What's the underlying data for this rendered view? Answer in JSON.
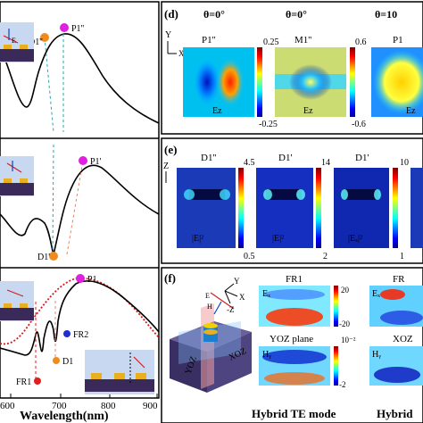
{
  "left_panel": {
    "x_axis_label": "Wavelength(nm)",
    "x_ticks": [
      "600",
      "700",
      "800",
      "900"
    ],
    "top": {
      "points": [
        {
          "label": "P1''",
          "color": "#e020e0"
        },
        {
          "label": "D1''",
          "color": "#f08c1e"
        }
      ]
    },
    "mid": {
      "points": [
        {
          "label": "P1'",
          "color": "#e020e0"
        },
        {
          "label": "D1'",
          "color": "#f08c1e"
        }
      ]
    },
    "bottom": {
      "points": [
        {
          "label": "P1",
          "color": "#e020e0"
        },
        {
          "label": "FR2",
          "color": "#1f2fd0"
        },
        {
          "label": "D1",
          "color": "#f08c1e"
        },
        {
          "label": "FR1",
          "color": "#e01f1f"
        }
      ]
    },
    "curve_color": "#000000",
    "dotted_color": "#d81a1a"
  },
  "panel_d": {
    "tag": "(d)",
    "columns": [
      {
        "theta": "θ=0°",
        "title": "P1''",
        "cb_max": "0.25",
        "cb_min": "-0.25",
        "field": "Ez"
      },
      {
        "theta": "θ=0°",
        "title": "M1''",
        "cb_max": "0.6",
        "cb_min": "-0.6",
        "field": "Ez"
      },
      {
        "theta": "θ=10",
        "title": "P1",
        "field": "Ez"
      }
    ],
    "axis_y": "Y",
    "axis_x": "X"
  },
  "panel_e": {
    "tag": "(e)",
    "axis": "Z",
    "columns": [
      {
        "title": "D1''",
        "cb_max": "4.5",
        "cb_min": "0.5",
        "field": "|E|²"
      },
      {
        "title": "D1'",
        "cb_max": "14",
        "cb_min": "2",
        "field": "|E|²"
      },
      {
        "title": "D1'",
        "cb_max": "10",
        "cb_min": "1",
        "field": "|Eₓ|²"
      }
    ]
  },
  "panel_f": {
    "tag": "(f)",
    "maps": [
      {
        "title": "FR1",
        "field": "Eₓ",
        "cb_max": "20",
        "cb_min": "-20"
      },
      {
        "title": "YOZ plane",
        "field": "Hᵧ",
        "cb_max": "10⁻²",
        "cb_min": "-2"
      },
      {
        "title": "FR",
        "field": "Eₓ"
      },
      {
        "title": "XOZ",
        "field": "Hᵧ"
      }
    ],
    "schematic_labels": {
      "yoz": "YOZ",
      "xoz": "XOZ",
      "y": "Y",
      "x": "X",
      "z": "-Z",
      "e": "E",
      "h": "H"
    },
    "caption_left": "Hybrid  TE  mode",
    "caption_right": "Hybrid"
  }
}
